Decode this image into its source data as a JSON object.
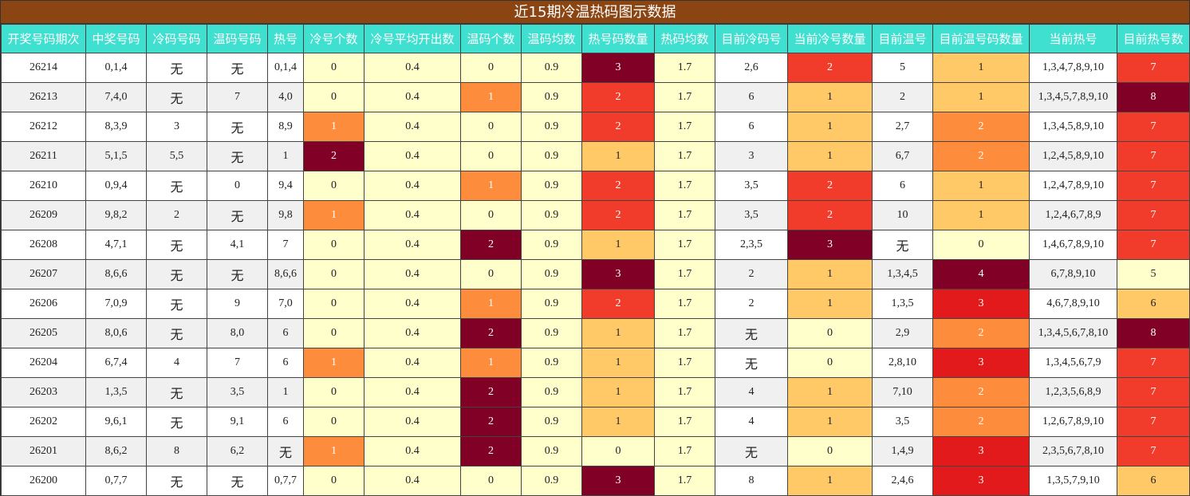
{
  "title": "近15期冷温热码图示数据",
  "headers": [
    "开奖号码期次",
    "中奖号码",
    "冷码号码",
    "温码号码",
    "热号",
    "冷号个数",
    "冷号平均开出数",
    "温码个数",
    "温码均数",
    "热号码数量",
    "热码均数",
    "目前冷码号",
    "当前冷号数量",
    "目前温号",
    "目前温号码数量",
    "当前热号",
    "目前热号数"
  ],
  "rows": [
    {
      "c": [
        "26214",
        "0,1,4",
        "无",
        "无",
        "0,1,4",
        "0",
        "0.4",
        "0",
        "0.9",
        "3",
        "1.7",
        "2,6",
        "2",
        "5",
        "1",
        "1,3,4,7,8,9,10",
        "7"
      ],
      "h": [
        "l",
        "l",
        "l",
        "dr",
        "l",
        "ro",
        "ye",
        "ro"
      ]
    },
    {
      "c": [
        "26213",
        "7,4,0",
        "无",
        "7",
        "4,0",
        "0",
        "0.4",
        "1",
        "0.9",
        "2",
        "1.7",
        "6",
        "1",
        "2",
        "1",
        "1,3,4,5,7,8,9,10",
        "8"
      ],
      "h": [
        "l",
        "l",
        "or",
        "ro",
        "l",
        "ye",
        "ye",
        "dr"
      ]
    },
    {
      "c": [
        "26212",
        "8,3,9",
        "3",
        "无",
        "8,9",
        "1",
        "0.4",
        "0",
        "0.9",
        "2",
        "1.7",
        "6",
        "1",
        "2,7",
        "2",
        "1,3,4,5,8,9,10",
        "7"
      ],
      "h": [
        "or",
        "l",
        "l",
        "ro",
        "l",
        "ye",
        "or",
        "ro"
      ]
    },
    {
      "c": [
        "26211",
        "5,1,5",
        "5,5",
        "无",
        "1",
        "2",
        "0.4",
        "0",
        "0.9",
        "1",
        "1.7",
        "3",
        "1",
        "6,7",
        "2",
        "1,2,4,5,8,9,10",
        "7"
      ],
      "h": [
        "dr",
        "l",
        "l",
        "ye",
        "l",
        "ye",
        "or",
        "ro"
      ]
    },
    {
      "c": [
        "26210",
        "0,9,4",
        "无",
        "0",
        "9,4",
        "0",
        "0.4",
        "1",
        "0.9",
        "2",
        "1.7",
        "3,5",
        "2",
        "6",
        "1",
        "1,2,4,7,8,9,10",
        "7"
      ],
      "h": [
        "l",
        "l",
        "or",
        "ro",
        "l",
        "ro",
        "ye",
        "ro"
      ]
    },
    {
      "c": [
        "26209",
        "9,8,2",
        "2",
        "无",
        "9,8",
        "1",
        "0.4",
        "0",
        "0.9",
        "2",
        "1.7",
        "3,5",
        "2",
        "10",
        "1",
        "1,2,4,6,7,8,9",
        "7"
      ],
      "h": [
        "or",
        "l",
        "l",
        "ro",
        "l",
        "ro",
        "ye",
        "ro"
      ]
    },
    {
      "c": [
        "26208",
        "4,7,1",
        "无",
        "4,1",
        "7",
        "0",
        "0.4",
        "2",
        "0.9",
        "1",
        "1.7",
        "2,3,5",
        "3",
        "无",
        "0",
        "1,4,6,7,8,9,10",
        "7"
      ],
      "h": [
        "l",
        "l",
        "dr",
        "ye",
        "l",
        "dr",
        "l",
        "ro"
      ]
    },
    {
      "c": [
        "26207",
        "8,6,6",
        "无",
        "无",
        "8,6,6",
        "0",
        "0.4",
        "0",
        "0.9",
        "3",
        "1.7",
        "2",
        "1",
        "1,3,4,5",
        "4",
        "6,7,8,9,10",
        "5"
      ],
      "h": [
        "l",
        "l",
        "l",
        "dr",
        "l",
        "ye",
        "dr",
        "l"
      ]
    },
    {
      "c": [
        "26206",
        "7,0,9",
        "无",
        "9",
        "7,0",
        "0",
        "0.4",
        "1",
        "0.9",
        "2",
        "1.7",
        "2",
        "1",
        "1,3,5",
        "3",
        "4,6,7,8,9,10",
        "6"
      ],
      "h": [
        "l",
        "l",
        "or",
        "ro",
        "l",
        "ye",
        "rd",
        "ye"
      ]
    },
    {
      "c": [
        "26205",
        "8,0,6",
        "无",
        "8,0",
        "6",
        "0",
        "0.4",
        "2",
        "0.9",
        "1",
        "1.7",
        "无",
        "0",
        "2,9",
        "2",
        "1,3,4,5,6,7,8,10",
        "8"
      ],
      "h": [
        "l",
        "l",
        "dr",
        "ye",
        "l",
        "l",
        "or",
        "dr"
      ]
    },
    {
      "c": [
        "26204",
        "6,7,4",
        "4",
        "7",
        "6",
        "1",
        "0.4",
        "1",
        "0.9",
        "1",
        "1.7",
        "无",
        "0",
        "2,8,10",
        "3",
        "1,3,4,5,6,7,9",
        "7"
      ],
      "h": [
        "or",
        "l",
        "or",
        "ye",
        "l",
        "l",
        "rd",
        "ro"
      ]
    },
    {
      "c": [
        "26203",
        "1,3,5",
        "无",
        "3,5",
        "1",
        "0",
        "0.4",
        "2",
        "0.9",
        "1",
        "1.7",
        "4",
        "1",
        "7,10",
        "2",
        "1,2,3,5,6,8,9",
        "7"
      ],
      "h": [
        "l",
        "l",
        "dr",
        "ye",
        "l",
        "ye",
        "or",
        "ro"
      ]
    },
    {
      "c": [
        "26202",
        "9,6,1",
        "无",
        "9,1",
        "6",
        "0",
        "0.4",
        "2",
        "0.9",
        "1",
        "1.7",
        "4",
        "1",
        "3,5",
        "2",
        "1,2,6,7,8,9,10",
        "7"
      ],
      "h": [
        "l",
        "l",
        "dr",
        "ye",
        "l",
        "ye",
        "or",
        "ro"
      ]
    },
    {
      "c": [
        "26201",
        "8,6,2",
        "8",
        "6,2",
        "无",
        "1",
        "0.4",
        "2",
        "0.9",
        "0",
        "1.7",
        "无",
        "0",
        "1,4,9",
        "3",
        "2,3,5,6,7,8,10",
        "7"
      ],
      "h": [
        "or",
        "l",
        "dr",
        "l",
        "l",
        "l",
        "rd",
        "ro"
      ]
    },
    {
      "c": [
        "26200",
        "0,7,7",
        "无",
        "无",
        "0,7,7",
        "0",
        "0.4",
        "0",
        "0.9",
        "3",
        "1.7",
        "8",
        "1",
        "2,4,6",
        "3",
        "1,3,5,7,9,10",
        "6"
      ],
      "h": [
        "l",
        "l",
        "l",
        "dr",
        "l",
        "ye",
        "rd",
        "ye"
      ]
    }
  ]
}
